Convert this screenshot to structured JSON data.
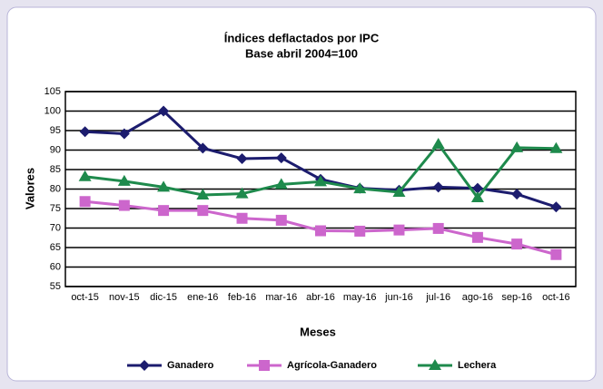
{
  "chart_data": {
    "type": "line",
    "title": "Índices deflactados por IPC",
    "subtitle": "Base abril 2004=100",
    "x_label": "Meses",
    "y_label": "Valores",
    "categories": [
      "oct-15",
      "nov-15",
      "dic-15",
      "ene-16",
      "feb-16",
      "mar-16",
      "abr-16",
      "may-16",
      "jun-16",
      "jul-16",
      "ago-16",
      "sep-16",
      "oct-16"
    ],
    "series": [
      {
        "name": "Ganadero",
        "color": "#1c1c6e",
        "marker": "diamond",
        "values": [
          94.7,
          94.2,
          100,
          90.5,
          87.8,
          88,
          82.5,
          80.2,
          79.7,
          80.5,
          80.2,
          78.7,
          75.4
        ]
      },
      {
        "name": "Agrícola-Ganadero",
        "color": "#cc66cc",
        "marker": "square",
        "values": [
          76.8,
          75.8,
          74.5,
          74.5,
          72.5,
          72,
          69.3,
          69.2,
          69.5,
          69.9,
          67.6,
          65.9,
          63.2
        ]
      },
      {
        "name": "Lechera",
        "color": "#1e8a4c",
        "marker": "triangle",
        "values": [
          83.2,
          82,
          80.5,
          78.5,
          78.8,
          81.2,
          81.9,
          80.1,
          79.2,
          91.5,
          77.8,
          90.6,
          90.4
        ]
      }
    ],
    "ylim": [
      55,
      105
    ],
    "yticks": [
      55,
      60,
      65,
      70,
      75,
      80,
      85,
      90,
      95,
      100,
      105
    ],
    "grid": true,
    "legend": "bottom"
  }
}
